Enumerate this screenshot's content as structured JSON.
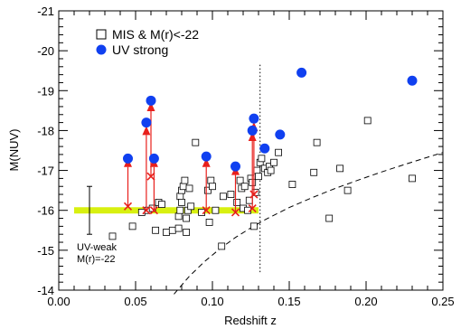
{
  "chart_data": {
    "type": "scatter",
    "xlabel": "Redshift z",
    "ylabel": "M(NUV)",
    "xlim": [
      0.0,
      0.25
    ],
    "ylim": [
      -14,
      -21
    ],
    "x_ticks": [
      "0.00",
      "0.05",
      "0.10",
      "0.15",
      "0.20",
      "0.25"
    ],
    "x_tick_values": [
      0.0,
      0.05,
      0.1,
      0.15,
      0.2,
      0.25
    ],
    "y_ticks": [
      "-14",
      "-15",
      "-16",
      "-17",
      "-18",
      "-19",
      "-20",
      "-21"
    ],
    "y_tick_values": [
      -14,
      -15,
      -16,
      -17,
      -18,
      -19,
      -20,
      -21
    ],
    "legend": {
      "position": "top-left",
      "entries": [
        {
          "marker": "open-square",
          "label": "MIS & M(r)<-22"
        },
        {
          "marker": "filled-circle",
          "label": "UV strong"
        }
      ]
    },
    "annotation": {
      "line1": "UV-weak",
      "line2": "M(r)=-22"
    },
    "colors": {
      "uv_strong": "#1040f0",
      "arrow": "#e8201c",
      "band": "#d8f010"
    },
    "mis_squares": {
      "x": [
        0.035,
        0.048,
        0.054,
        0.058,
        0.061,
        0.063,
        0.065,
        0.067,
        0.07,
        0.074,
        0.078,
        0.078,
        0.079,
        0.079,
        0.08,
        0.08,
        0.081,
        0.082,
        0.083,
        0.083,
        0.084,
        0.085,
        0.086,
        0.089,
        0.093,
        0.097,
        0.098,
        0.099,
        0.1,
        0.102,
        0.106,
        0.107,
        0.112,
        0.116,
        0.118,
        0.119,
        0.12,
        0.121,
        0.123,
        0.124,
        0.125,
        0.126,
        0.127,
        0.128,
        0.129,
        0.13,
        0.131,
        0.132,
        0.134,
        0.136,
        0.137,
        0.138,
        0.14,
        0.143,
        0.152,
        0.166,
        0.168,
        0.176,
        0.183,
        0.188,
        0.201,
        0.23
      ],
      "y": [
        -15.35,
        -15.6,
        -15.95,
        -16.0,
        -16.05,
        -15.5,
        -16.2,
        -16.15,
        -15.45,
        -15.5,
        -15.85,
        -15.55,
        -16.0,
        -16.35,
        -16.2,
        -16.5,
        -16.6,
        -16.75,
        -15.45,
        -15.8,
        -16.0,
        -16.55,
        -16.1,
        -17.7,
        -15.95,
        -16.5,
        -15.7,
        -16.75,
        -16.6,
        -16.0,
        -15.1,
        -16.35,
        -16.4,
        -16.2,
        -16.75,
        -16.55,
        -16.05,
        -16.6,
        -16.0,
        -16.25,
        -16.8,
        -16.7,
        -15.6,
        -16.45,
        -17.0,
        -16.85,
        -17.2,
        -17.3,
        -17.05,
        -16.95,
        -17.1,
        -17.0,
        -17.2,
        -17.45,
        -16.65,
        -16.95,
        -17.7,
        -15.8,
        -17.05,
        -16.5,
        -18.25,
        -16.8
      ]
    },
    "uv_strong": {
      "x": [
        0.045,
        0.057,
        0.06,
        0.062,
        0.096,
        0.115,
        0.126,
        0.127,
        0.134,
        0.144,
        0.158,
        0.23
      ],
      "y": [
        -17.3,
        -18.2,
        -18.75,
        -17.3,
        -17.35,
        -17.1,
        -18.0,
        -18.3,
        -17.55,
        -17.9,
        -19.45,
        -19.25
      ]
    },
    "arrows": {
      "x": [
        0.045,
        0.057,
        0.06,
        0.062,
        0.096,
        0.115,
        0.126,
        0.127
      ],
      "from": [
        -16.1,
        -16.0,
        -16.85,
        -16.0,
        -16.0,
        -15.95,
        -16.05,
        -16.4
      ],
      "to": [
        -17.2,
        -18.0,
        -18.6,
        -17.2,
        -17.2,
        -17.0,
        -17.85,
        -18.1
      ]
    },
    "threshold_band": {
      "x": [
        0.01,
        0.13
      ],
      "y": -16.0
    },
    "error_bar": {
      "x": 0.02,
      "y_low": -15.4,
      "y_high": -16.6
    },
    "dotted_line": {
      "x": 0.131,
      "y_low": -14.45,
      "y_high": -19.7
    },
    "dashed_curve": {
      "x": [
        0.075,
        0.085,
        0.095,
        0.105,
        0.115,
        0.125,
        0.135,
        0.15,
        0.165,
        0.18,
        0.195,
        0.21,
        0.225,
        0.24,
        0.25
      ],
      "y": [
        -13.9,
        -14.35,
        -14.72,
        -15.04,
        -15.32,
        -15.56,
        -15.78,
        -16.07,
        -16.32,
        -16.55,
        -16.76,
        -16.96,
        -17.15,
        -17.33,
        -17.45
      ]
    }
  }
}
